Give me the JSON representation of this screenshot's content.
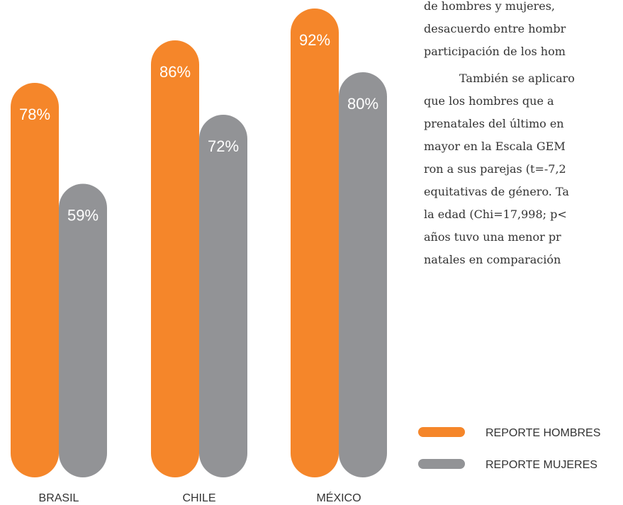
{
  "chart_data": {
    "type": "bar",
    "categories": [
      "BRASIL",
      "CHILE",
      "MÉXICO"
    ],
    "series": [
      {
        "name": "REPORTE HOMBRES",
        "color": "#f5862a",
        "values": [
          78,
          86,
          92
        ],
        "value_labels": [
          "78%",
          "86%",
          "92%"
        ]
      },
      {
        "name": "REPORTE MUJERES",
        "color": "#929396",
        "values": [
          59,
          72,
          80
        ],
        "value_labels": [
          "59%",
          "72%",
          "80%"
        ]
      }
    ]
  },
  "text": {
    "lines": [
      "de hombres y mujeres, ",
      "desacuerdo entre hombr",
      "participación de los hom",
      "También se aplicaro",
      "que los hombres que a",
      "prenatales del último en",
      "mayor en la Escala GEM",
      "ron a sus parejas (t=-7,2",
      "equitativas de género. Ta",
      "la edad (Chi=17,998; p<",
      "años tuvo una menor pr",
      "natales en comparación"
    ]
  }
}
